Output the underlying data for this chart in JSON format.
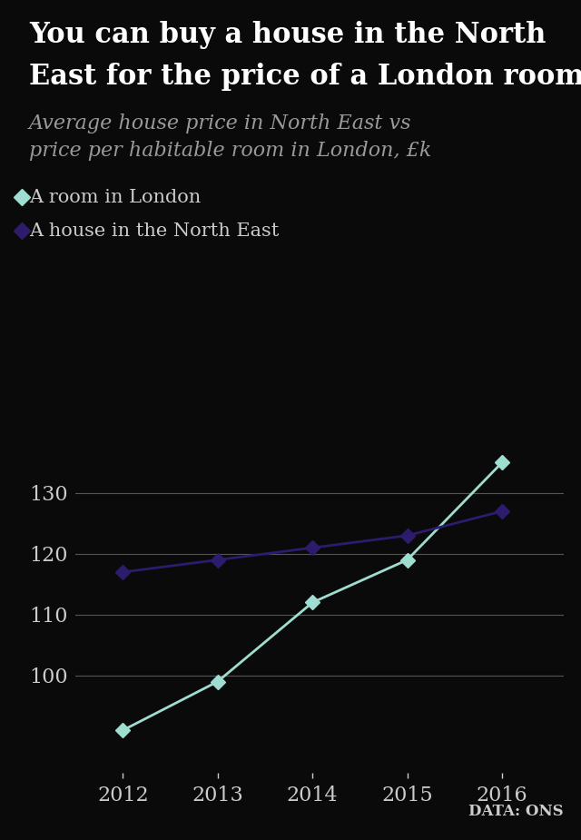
{
  "title_line1": "You can buy a house in the North",
  "title_line2": "East for the price of a London room",
  "subtitle_line1": "Average house price in North East vs",
  "subtitle_line2": "price per habitable room in London, £k",
  "years": [
    2012,
    2013,
    2014,
    2015,
    2016
  ],
  "london_room": [
    91,
    99,
    112,
    119,
    135
  ],
  "north_east_house": [
    117,
    119,
    121,
    123,
    127
  ],
  "london_color": "#9EDDD0",
  "north_east_color": "#2D1B6E",
  "background_color": "#0a0a0a",
  "text_color": "#cccccc",
  "grid_color": "#555555",
  "title_color": "#ffffff",
  "subtitle_color": "#999999",
  "legend_label_london": "A room in London",
  "legend_label_north_east": "A house in the North East",
  "source_text": "DATA: ONS",
  "ylim": [
    84,
    142
  ],
  "yticks": [
    100,
    110,
    120,
    130
  ],
  "title_fontsize": 22,
  "subtitle_fontsize": 16,
  "axis_fontsize": 16,
  "legend_fontsize": 15,
  "source_fontsize": 12
}
